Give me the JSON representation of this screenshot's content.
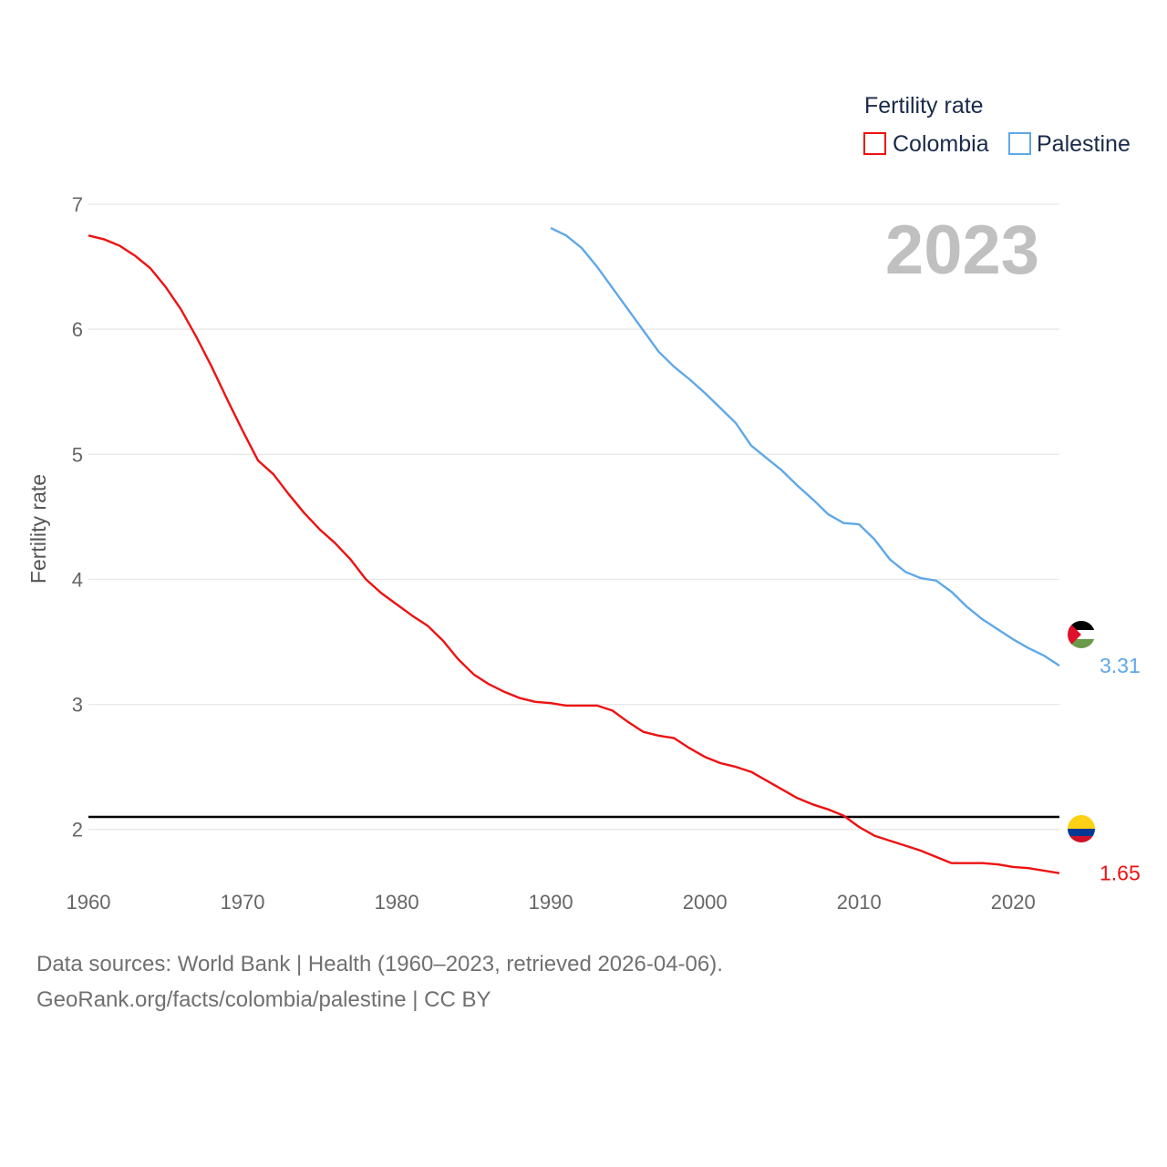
{
  "chart_data": {
    "type": "line",
    "ylabel": "Fertility rate",
    "current_year": "2023",
    "xlim": [
      1960,
      2023
    ],
    "ylim": [
      1.4,
      7.0
    ],
    "y_ticks": [
      2,
      3,
      4,
      5,
      6,
      7
    ],
    "x_ticks": [
      1960,
      1970,
      1980,
      1990,
      2000,
      2010,
      2020
    ],
    "grid": true,
    "reference_line": {
      "y": 2.1,
      "color": "#000000"
    },
    "legend": {
      "title": "Fertility rate",
      "position": "top-right"
    },
    "series": [
      {
        "name": "Colombia",
        "color": "#ee1111",
        "end_label": "1.65",
        "flag": "colombia-flag",
        "x": [
          1960,
          1961,
          1962,
          1963,
          1964,
          1965,
          1966,
          1967,
          1968,
          1969,
          1970,
          1971,
          1972,
          1973,
          1974,
          1975,
          1976,
          1977,
          1978,
          1979,
          1980,
          1981,
          1982,
          1983,
          1984,
          1985,
          1986,
          1987,
          1988,
          1989,
          1990,
          1991,
          1992,
          1993,
          1994,
          1995,
          1996,
          1997,
          1998,
          1999,
          2000,
          2001,
          2002,
          2003,
          2004,
          2005,
          2006,
          2007,
          2008,
          2009,
          2010,
          2011,
          2012,
          2013,
          2014,
          2015,
          2016,
          2017,
          2018,
          2019,
          2020,
          2021,
          2022,
          2023
        ],
        "values": [
          6.75,
          6.72,
          6.67,
          6.59,
          6.49,
          6.34,
          6.16,
          5.94,
          5.7,
          5.44,
          5.19,
          4.95,
          4.84,
          4.68,
          4.53,
          4.4,
          4.29,
          4.16,
          4.0,
          3.89,
          3.8,
          3.71,
          3.63,
          3.51,
          3.36,
          3.24,
          3.16,
          3.1,
          3.05,
          3.02,
          3.01,
          2.99,
          2.99,
          2.99,
          2.95,
          2.86,
          2.78,
          2.75,
          2.73,
          2.65,
          2.58,
          2.53,
          2.5,
          2.46,
          2.39,
          2.32,
          2.25,
          2.2,
          2.16,
          2.11,
          2.02,
          1.95,
          1.91,
          1.87,
          1.83,
          1.78,
          1.73,
          1.73,
          1.73,
          1.72,
          1.7,
          1.69,
          1.67,
          1.65
        ]
      },
      {
        "name": "Palestine",
        "color": "#5fa8e8",
        "end_label": "3.31",
        "flag": "palestine-flag",
        "x": [
          1990,
          1991,
          1992,
          1993,
          1994,
          1995,
          1996,
          1997,
          1998,
          1999,
          2000,
          2001,
          2002,
          2003,
          2004,
          2005,
          2006,
          2007,
          2008,
          2009,
          2010,
          2011,
          2012,
          2013,
          2014,
          2015,
          2016,
          2017,
          2018,
          2019,
          2020,
          2021,
          2022,
          2023
        ],
        "values": [
          6.81,
          6.75,
          6.65,
          6.5,
          6.33,
          6.16,
          5.99,
          5.82,
          5.7,
          5.6,
          5.49,
          5.37,
          5.25,
          5.07,
          4.97,
          4.87,
          4.75,
          4.64,
          4.52,
          4.45,
          4.44,
          4.32,
          4.16,
          4.06,
          4.01,
          3.99,
          3.9,
          3.78,
          3.68,
          3.6,
          3.52,
          3.45,
          3.39,
          3.31
        ]
      }
    ]
  },
  "footer": {
    "line1": "Data sources: World Bank | Health (1960–2023, retrieved 2026-04-06).",
    "line2": "GeoRank.org/facts/colombia/palestine | CC BY"
  }
}
